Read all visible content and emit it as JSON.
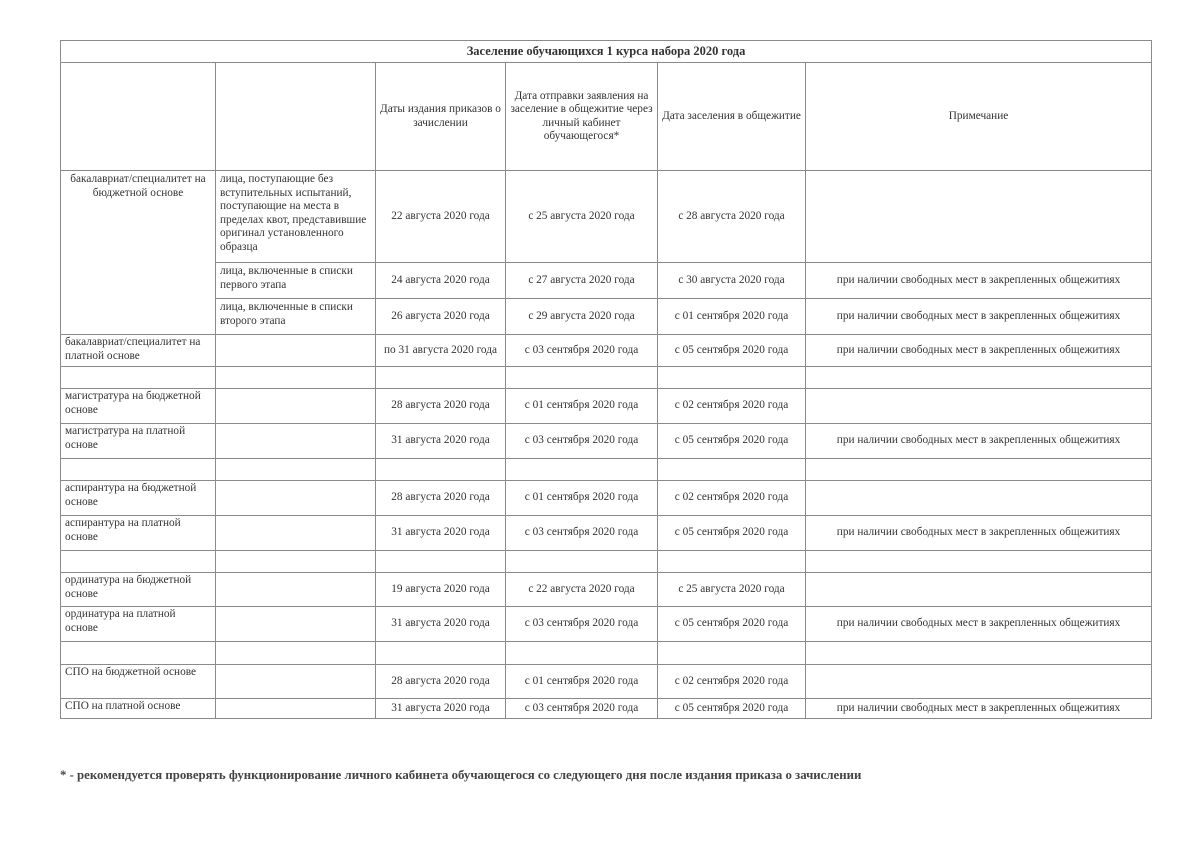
{
  "table": {
    "title": "Заселение обучающихся 1 курса набора 2020 года",
    "headers": [
      "",
      "",
      "Даты издания приказов о зачислении",
      "Дата отправки заявления на заселение в общежитие через личный кабинет обучающегося*",
      "Дата заселения в общежитие",
      "Примечание"
    ],
    "bachelor_budget": {
      "label": "бакалавриат/специалитет на бюджетной основе",
      "rows": [
        {
          "sub": "лица, поступающие без вступительных испытаний, поступающие на места в пределах квот, представившие оригинал установленного образца",
          "order": "22 августа 2020 года",
          "apply": "с 25 августа 2020 года",
          "move": "с 28 августа 2020 года",
          "note": ""
        },
        {
          "sub": "лица, включенные в списки первого этапа",
          "order": "24 августа 2020 года",
          "apply": "с 27 августа 2020 года",
          "move": "с 30 августа 2020 года",
          "note": "при наличии свободных мест в закрепленных общежитиях"
        },
        {
          "sub": "лица, включенные в списки второго этапа",
          "order": "26 августа 2020 года",
          "apply": "с 29 августа 2020 года",
          "move": "с 01 сентября 2020 года",
          "note": "при наличии свободных мест в закрепленных общежитиях"
        }
      ]
    },
    "rows": [
      {
        "label": "бакалавриат/специалитет на платной основе",
        "order": "по 31 августа  2020 года",
        "apply": "с 03 сентября 2020 года",
        "move": "с 05 сентября 2020 года",
        "note": "при наличии свободных мест в закрепленных общежитиях"
      },
      {
        "empty": true
      },
      {
        "label": "магистратура на бюджетной основе",
        "order": "28 августа 2020 года",
        "apply": "с 01 сентября 2020 года",
        "move": "с 02 сентября 2020 года",
        "note": ""
      },
      {
        "label": "магистратура на платной основе",
        "order": "31 августа 2020 года",
        "apply": "с 03 сентября 2020 года",
        "move": "с 05 сентября 2020 года",
        "note": "при наличии свободных мест в закрепленных общежитиях"
      },
      {
        "empty": true
      },
      {
        "label": "аспирантура на бюджетной основе",
        "order": "28 августа 2020 года",
        "apply": "с 01 сентября 2020 года",
        "move": "с 02 сентября 2020 года",
        "note": ""
      },
      {
        "label": "аспирантура на платной основе",
        "order": "31 августа 2020 года",
        "apply": "с 03 сентября 2020 года",
        "move": "с 05 сентября 2020 года",
        "note": "при наличии свободных мест в закрепленных общежитиях"
      },
      {
        "empty": true
      },
      {
        "label": "ординатура на бюджетной основе",
        "order": "19 августа 2020 года",
        "apply": "с 22 августа 2020 года",
        "move": "с 25 августа 2020 года",
        "note": ""
      },
      {
        "label": "ординатура на платной основе",
        "order": "31 августа 2020 года",
        "apply": "с 03 сентября 2020 года",
        "move": "с 05 сентября 2020 года",
        "note": "при наличии свободных мест в закрепленных общежитиях"
      },
      {
        "empty": true
      },
      {
        "label": "СПО на бюджетной основе",
        "order": "28 августа 2020 года",
        "apply": "с 01 сентября 2020 года",
        "move": "с 02 сентября 2020 года",
        "note": ""
      },
      {
        "label": "СПО на платной основе",
        "order": "31 августа 2020 года",
        "apply": "с 03 сентября 2020 года",
        "move": "с 05 сентября 2020 года",
        "note": "при наличии свободных мест в закрепленных общежитиях"
      }
    ]
  },
  "footnote": "* - рекомендуется проверять функционирование личного кабинета обучающегося со следующего дня после издания приказа о зачислении"
}
